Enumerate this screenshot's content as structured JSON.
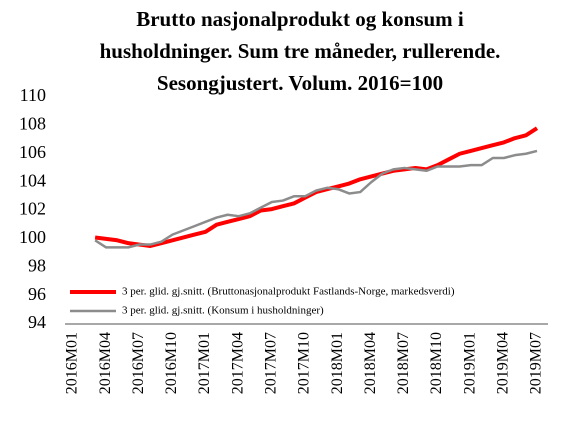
{
  "chart_data": {
    "type": "line",
    "title": [
      "Brutto nasjonalprodukt og konsum i",
      "husholdninger. Sum tre måneder, rullerende.",
      "Sesongjustert. Volum. 2016=100"
    ],
    "categories": [
      "2016M01",
      null,
      null,
      "2016M04",
      null,
      null,
      "2016M07",
      null,
      null,
      "2016M10",
      null,
      null,
      "2017M01",
      null,
      null,
      "2017M04",
      null,
      null,
      "2017M07",
      null,
      null,
      "2017M10",
      null,
      null,
      "2018M01",
      null,
      null,
      "2018M04",
      null,
      null,
      "2018M07",
      null,
      null,
      "2018M10",
      null,
      null,
      "2019M01",
      null,
      null,
      "2019M04",
      null,
      null,
      "2019M07"
    ],
    "series": [
      {
        "name": "3 per. glid. gj.snitt. (Bruttonasjonalprodukt Fastlands-Norge, markedsverdi)",
        "color": "#ff0000",
        "values": [
          null,
          null,
          100.1,
          100.0,
          99.9,
          99.7,
          99.6,
          99.5,
          99.7,
          99.9,
          100.1,
          100.3,
          100.5,
          101.0,
          101.2,
          101.4,
          101.6,
          102.0,
          102.1,
          102.3,
          102.5,
          102.9,
          103.3,
          103.5,
          103.7,
          103.9,
          104.2,
          104.4,
          104.6,
          104.8,
          104.9,
          105.0,
          104.9,
          105.2,
          105.6,
          106.0,
          106.2,
          106.4,
          106.6,
          106.8,
          107.1,
          107.3,
          107.8
        ]
      },
      {
        "name": "3 per. glid. gj.snitt. (Konsum i husholdninger)",
        "color": "#8c8c8c",
        "values": [
          null,
          null,
          99.9,
          99.4,
          99.4,
          99.4,
          99.6,
          99.6,
          99.8,
          100.3,
          100.6,
          100.9,
          101.2,
          101.5,
          101.7,
          101.6,
          101.8,
          102.2,
          102.6,
          102.7,
          103.0,
          103.0,
          103.4,
          103.6,
          103.5,
          103.2,
          103.3,
          104.0,
          104.6,
          104.9,
          105.0,
          104.9,
          104.8,
          105.1,
          105.1,
          105.1,
          105.2,
          105.2,
          105.7,
          105.7,
          105.9,
          106.0,
          106.2
        ]
      }
    ],
    "ylim": [
      94,
      110
    ],
    "yticks": [
      94,
      96,
      98,
      100,
      102,
      104,
      106,
      108,
      110
    ],
    "legend": "lower left",
    "grid": false
  }
}
